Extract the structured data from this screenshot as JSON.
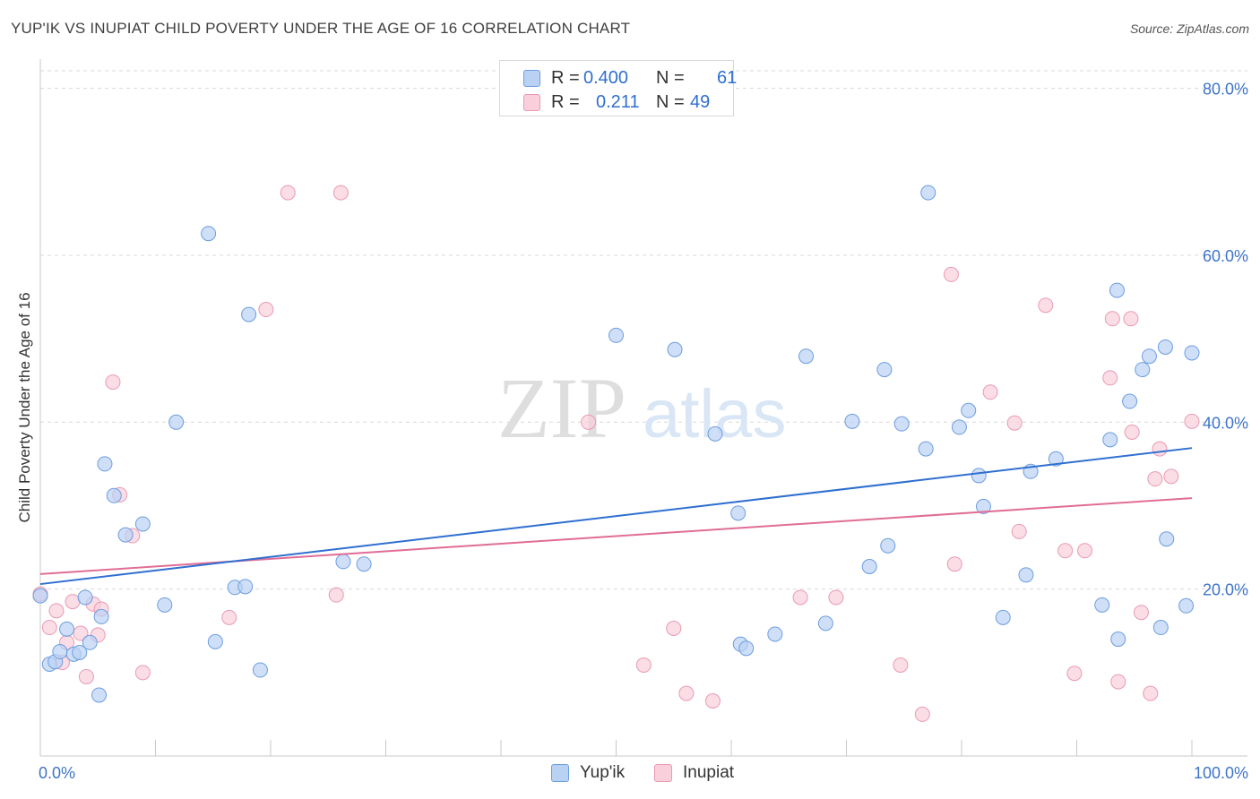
{
  "header": {
    "title": "YUP'IK VS INUPIAT CHILD POVERTY UNDER THE AGE OF 16 CORRELATION CHART",
    "source": "Source: ZipAtlas.com"
  },
  "watermark": {
    "zip": "ZIP",
    "atlas": "atlas"
  },
  "legend": {
    "series": [
      {
        "r_label": "R =",
        "r_value": "0.400",
        "n_label": "N =",
        "n_value": "61",
        "color": "#a9c8f0",
        "stroke": "#6a9be0"
      },
      {
        "r_label": "R =",
        "r_value": "0.211",
        "n_label": "N =",
        "n_value": "49",
        "color": "#f7bfd0",
        "stroke": "#e890aa"
      }
    ]
  },
  "colors": {
    "blue_fill": "#b9d2f3",
    "blue_stroke": "#6d9de0",
    "blue_line": "#2f6fd0",
    "pink_fill": "#f9cfdc",
    "pink_stroke": "#e99ab3",
    "pink_line": "#e06d96",
    "axis_label": "#3d74c9",
    "grid": "#d9d9d9"
  },
  "chart_data": {
    "type": "scatter",
    "title": "YUP'IK VS INUPIAT CHILD POVERTY UNDER THE AGE OF 16 CORRELATION CHART",
    "xlabel": "",
    "ylabel": "Child Poverty Under the Age of 16",
    "xlim": [
      0,
      100
    ],
    "ylim": [
      0,
      83.5
    ],
    "x_tick_labels": [
      "0.0%",
      "100.0%"
    ],
    "y_ticks": [
      20,
      40,
      60,
      80
    ],
    "y_tick_labels": [
      "20.0%",
      "40.0%",
      "60.0%",
      "80.0%"
    ],
    "grid": true,
    "legend_position": "top-center",
    "series": [
      {
        "name": "Yup'ik",
        "trend": {
          "x": [
            0,
            100
          ],
          "y": [
            20.6,
            36.9
          ]
        },
        "points": [
          [
            0.0,
            19.2
          ],
          [
            0.8,
            11.0
          ],
          [
            1.3,
            11.3
          ],
          [
            1.7,
            12.5
          ],
          [
            2.3,
            15.2
          ],
          [
            2.9,
            12.2
          ],
          [
            3.4,
            12.4
          ],
          [
            3.9,
            19.0
          ],
          [
            4.3,
            13.6
          ],
          [
            5.1,
            7.3
          ],
          [
            5.3,
            16.7
          ],
          [
            5.6,
            35.0
          ],
          [
            6.4,
            31.2
          ],
          [
            7.4,
            26.5
          ],
          [
            8.9,
            27.8
          ],
          [
            10.8,
            18.1
          ],
          [
            11.8,
            40.0
          ],
          [
            14.6,
            62.6
          ],
          [
            15.2,
            13.7
          ],
          [
            16.9,
            20.2
          ],
          [
            17.8,
            20.3
          ],
          [
            18.1,
            52.9
          ],
          [
            19.1,
            10.3
          ],
          [
            26.3,
            23.3
          ],
          [
            28.1,
            23.0
          ],
          [
            50.0,
            50.4
          ],
          [
            55.1,
            48.7
          ],
          [
            58.6,
            38.6
          ],
          [
            60.6,
            29.1
          ],
          [
            60.8,
            13.4
          ],
          [
            61.3,
            12.9
          ],
          [
            63.8,
            14.6
          ],
          [
            66.5,
            47.9
          ],
          [
            68.2,
            15.9
          ],
          [
            70.5,
            40.1
          ],
          [
            72.0,
            22.7
          ],
          [
            73.3,
            46.3
          ],
          [
            73.6,
            25.2
          ],
          [
            74.8,
            39.8
          ],
          [
            76.9,
            36.8
          ],
          [
            77.1,
            67.5
          ],
          [
            79.8,
            39.4
          ],
          [
            80.6,
            41.4
          ],
          [
            81.5,
            33.6
          ],
          [
            81.9,
            29.9
          ],
          [
            83.6,
            16.6
          ],
          [
            85.6,
            21.7
          ],
          [
            86.0,
            34.1
          ],
          [
            88.2,
            35.6
          ],
          [
            92.2,
            18.1
          ],
          [
            92.9,
            37.9
          ],
          [
            93.5,
            55.8
          ],
          [
            93.6,
            14.0
          ],
          [
            94.6,
            42.5
          ],
          [
            95.7,
            46.3
          ],
          [
            96.3,
            47.9
          ],
          [
            97.3,
            15.4
          ],
          [
            97.7,
            49.0
          ],
          [
            97.8,
            26.0
          ],
          [
            99.5,
            18.0
          ],
          [
            100.0,
            48.3
          ]
        ]
      },
      {
        "name": "Inupiat",
        "trend": {
          "x": [
            0,
            100
          ],
          "y": [
            21.8,
            30.9
          ]
        },
        "points": [
          [
            0.0,
            19.4
          ],
          [
            0.8,
            15.4
          ],
          [
            1.4,
            17.4
          ],
          [
            1.9,
            11.2
          ],
          [
            2.3,
            13.6
          ],
          [
            2.8,
            18.5
          ],
          [
            3.5,
            14.7
          ],
          [
            4.0,
            9.5
          ],
          [
            4.6,
            18.2
          ],
          [
            5.0,
            14.5
          ],
          [
            5.3,
            17.6
          ],
          [
            6.3,
            44.8
          ],
          [
            6.9,
            31.3
          ],
          [
            8.0,
            26.4
          ],
          [
            8.9,
            10.0
          ],
          [
            16.4,
            16.6
          ],
          [
            19.6,
            53.5
          ],
          [
            21.5,
            67.5
          ],
          [
            25.7,
            19.3
          ],
          [
            26.1,
            67.5
          ],
          [
            47.6,
            40.0
          ],
          [
            52.4,
            10.9
          ],
          [
            55.0,
            15.3
          ],
          [
            56.1,
            7.5
          ],
          [
            58.4,
            6.6
          ],
          [
            66.0,
            19.0
          ],
          [
            69.1,
            19.0
          ],
          [
            74.7,
            10.9
          ],
          [
            76.6,
            5.0
          ],
          [
            79.1,
            57.7
          ],
          [
            79.4,
            23.0
          ],
          [
            82.5,
            43.6
          ],
          [
            84.6,
            39.9
          ],
          [
            85.0,
            26.9
          ],
          [
            87.3,
            54.0
          ],
          [
            89.0,
            24.6
          ],
          [
            89.8,
            9.9
          ],
          [
            90.7,
            24.6
          ],
          [
            92.9,
            45.3
          ],
          [
            93.1,
            52.4
          ],
          [
            93.6,
            8.9
          ],
          [
            94.7,
            52.4
          ],
          [
            94.8,
            38.8
          ],
          [
            95.6,
            17.2
          ],
          [
            96.4,
            7.5
          ],
          [
            96.8,
            33.2
          ],
          [
            97.2,
            36.8
          ],
          [
            98.2,
            33.5
          ],
          [
            100.0,
            40.1
          ]
        ]
      }
    ]
  }
}
